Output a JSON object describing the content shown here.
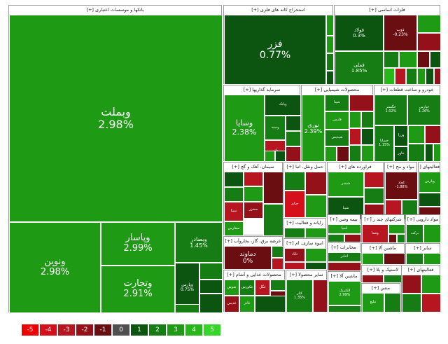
{
  "colors": {
    "-5": "#ee0000",
    "-4": "#d5101a",
    "-3": "#b71520",
    "-2": "#95111a",
    "-1": "#6b0e12",
    "0": "#4f4f4f",
    "1": "#0b5510",
    "2": "#157d13",
    "3": "#1f9a15",
    "4": "#28b71b",
    "5": "#35d52a"
  },
  "groups": [
    {
      "id": "banks",
      "title": "بانکها و موسسات اعتباری [+]",
      "tiles": [
        {
          "name": "وبملت",
          "value": "2.98%",
          "c": "3"
        },
        {
          "name": "ونوین",
          "value": "2.98%",
          "c": "3"
        },
        {
          "name": "وپاسار",
          "value": "2.99%",
          "c": "3"
        },
        {
          "name": "وتجارت",
          "value": "2.91%",
          "c": "3"
        },
        {
          "name": "وبصادر",
          "value": "1.45%",
          "c": "2"
        },
        {
          "name": "وپارس",
          "value": "0.75%",
          "c": "1"
        },
        {
          "name": "",
          "value": "",
          "c": "2"
        },
        {
          "name": "",
          "value": "",
          "c": "1"
        },
        {
          "name": "",
          "value": "",
          "c": "1"
        },
        {
          "name": "",
          "value": "",
          "c": "2"
        }
      ]
    },
    {
      "id": "mining",
      "title": "استخراج کانه های فلزی [+]",
      "tiles": [
        {
          "name": "فزر",
          "value": "0.77%",
          "c": "1"
        },
        {
          "name": "",
          "value": "",
          "c": "3"
        },
        {
          "name": "",
          "value": "",
          "c": "3"
        },
        {
          "name": "",
          "value": "",
          "c": "2"
        },
        {
          "name": "",
          "value": "",
          "c": "1"
        }
      ]
    },
    {
      "id": "metals",
      "title": "فلزات اساسی [+]",
      "tiles": [
        {
          "name": "فولاد",
          "value": "0.3%",
          "c": "1"
        },
        {
          "name": "ذوب",
          "value": "-0.23%",
          "c": "-1"
        },
        {
          "name": "فملی",
          "value": "1.85%",
          "c": "2"
        },
        {
          "name": "",
          "value": "",
          "c": "3"
        },
        {
          "name": "",
          "value": "",
          "c": "-2"
        },
        {
          "name": "",
          "value": "",
          "c": "2"
        },
        {
          "name": "",
          "value": "",
          "c": "3"
        },
        {
          "name": "",
          "value": "",
          "c": "-1"
        },
        {
          "name": "",
          "value": "",
          "c": "1"
        },
        {
          "name": "",
          "value": "",
          "c": "4"
        },
        {
          "name": "",
          "value": "",
          "c": "-3"
        },
        {
          "name": "",
          "value": "",
          "c": "2"
        },
        {
          "name": "",
          "value": "",
          "c": "3"
        },
        {
          "name": "",
          "value": "",
          "c": "1"
        },
        {
          "name": "",
          "value": "",
          "c": "-2"
        }
      ]
    },
    {
      "id": "investment",
      "title": "سرمایه گذاریها [+]",
      "tiles": [
        {
          "name": "وسایا",
          "value": "2.38%",
          "c": "3"
        },
        {
          "name": "وبانک",
          "value": "",
          "c": "1"
        },
        {
          "name": "وسپه",
          "value": "",
          "c": "2"
        },
        {
          "name": "واتی",
          "value": "",
          "c": "-3"
        },
        {
          "name": "",
          "value": "",
          "c": "1"
        },
        {
          "name": "",
          "value": "",
          "c": "2"
        },
        {
          "name": "",
          "value": "",
          "c": "-2"
        },
        {
          "name": "",
          "value": "",
          "c": "3"
        },
        {
          "name": "",
          "value": "",
          "c": "1"
        }
      ]
    },
    {
      "id": "chemical",
      "title": "محصولات شیمیایی [+]",
      "tiles": [
        {
          "name": "نوری",
          "value": "2.39%",
          "c": "3"
        },
        {
          "name": "شپنا",
          "value": "",
          "c": "2"
        },
        {
          "name": "فارس",
          "value": "",
          "c": "3"
        },
        {
          "name": "شپدیس",
          "value": "",
          "c": "2"
        },
        {
          "name": "",
          "value": "",
          "c": "-2"
        },
        {
          "name": "",
          "value": "",
          "c": "3"
        },
        {
          "name": "",
          "value": "",
          "c": "2"
        },
        {
          "name": "",
          "value": "",
          "c": "-3"
        },
        {
          "name": "",
          "value": "",
          "c": "1"
        },
        {
          "name": "",
          "value": "",
          "c": "3"
        },
        {
          "name": "",
          "value": "",
          "c": "-1"
        },
        {
          "name": "",
          "value": "",
          "c": "2"
        },
        {
          "name": "",
          "value": "",
          "c": "3"
        },
        {
          "name": "",
          "value": "",
          "c": "-2"
        },
        {
          "name": "",
          "value": "",
          "c": "1"
        }
      ]
    },
    {
      "id": "auto",
      "title": "خودرو و ساخت قطعات [+]",
      "tiles": [
        {
          "name": "خگستر",
          "value": "1.02%",
          "c": "2"
        },
        {
          "name": "خپارس",
          "value": "1.26%",
          "c": "2"
        },
        {
          "name": "خساپا",
          "value": "1.15%",
          "c": "2"
        },
        {
          "name": "وزرا",
          "value": "",
          "c": "1"
        },
        {
          "name": "خاور",
          "value": "",
          "c": "1"
        },
        {
          "name": "",
          "value": "",
          "c": "3"
        },
        {
          "name": "",
          "value": "",
          "c": "-2"
        },
        {
          "name": "",
          "value": "",
          "c": "2"
        },
        {
          "name": "",
          "value": "",
          "c": "1"
        },
        {
          "name": "",
          "value": "",
          "c": "3"
        }
      ]
    },
    {
      "id": "cement",
      "title": "سیمان، آهک و گچ [+]",
      "tiles": [
        {
          "name": "سیتا",
          "value": "",
          "c": "-3"
        },
        {
          "name": "سفارس",
          "value": "",
          "c": "3"
        },
        {
          "name": "سخزر",
          "value": "",
          "c": "-2"
        },
        {
          "name": "",
          "value": "",
          "c": "1"
        },
        {
          "name": "",
          "value": "",
          "c": "2"
        },
        {
          "name": "",
          "value": "",
          "c": "-3"
        },
        {
          "name": "",
          "value": "",
          "c": "3"
        },
        {
          "name": "",
          "value": "",
          "c": "-1"
        },
        {
          "name": "",
          "value": "",
          "c": "2"
        }
      ]
    },
    {
      "id": "transport",
      "title": "حمل ونقل، انبا [+]",
      "tiles": [
        {
          "name": "حتاید",
          "value": "",
          "c": "-4"
        },
        {
          "name": "",
          "value": "",
          "c": "2"
        },
        {
          "name": "",
          "value": "",
          "c": "-2"
        },
        {
          "name": "",
          "value": "",
          "c": "3"
        },
        {
          "name": "",
          "value": "",
          "c": "-1"
        }
      ]
    },
    {
      "id": "petroleum",
      "title": "فراورده های [+]",
      "tiles": [
        {
          "name": "شبندر",
          "value": "",
          "c": "3"
        },
        {
          "name": "شپنا",
          "value": "",
          "c": "1"
        },
        {
          "name": "",
          "value": "",
          "c": "-3"
        },
        {
          "name": "",
          "value": "",
          "c": "2"
        },
        {
          "name": "",
          "value": "",
          "c": "-2"
        },
        {
          "name": "",
          "value": "",
          "c": "3"
        }
      ]
    },
    {
      "id": "nonmetal",
      "title": "مواد و مح [+]",
      "tiles": [
        {
          "name": "کچاد",
          "value": "-1.88%",
          "c": "-1"
        },
        {
          "name": "",
          "value": "",
          "c": "-3"
        },
        {
          "name": "",
          "value": "",
          "c": "2"
        }
      ]
    },
    {
      "id": "multi",
      "title": "فعالیتهای [+]",
      "tiles": [
        {
          "name": "وپارس",
          "value": "",
          "c": "3"
        },
        {
          "name": "",
          "value": "",
          "c": "1"
        },
        {
          "name": "",
          "value": "",
          "c": "-1"
        }
      ]
    },
    {
      "id": "software",
      "title": "رایانه و فعالیت [+]",
      "tiles": [
        {
          "name": "",
          "value": "",
          "c": "2"
        },
        {
          "name": "",
          "value": "",
          "c": "3"
        }
      ]
    },
    {
      "id": "insurance",
      "title": "بیمه وصن [+]",
      "tiles": [
        {
          "name": "اسیا",
          "value": "",
          "c": "3"
        },
        {
          "name": "",
          "value": "",
          "c": "2"
        },
        {
          "name": "",
          "value": "",
          "c": "-2"
        }
      ]
    },
    {
      "id": "multi2",
      "title": "شرکتهای چند ر [+]",
      "tiles": [
        {
          "name": "وصنا",
          "value": "",
          "c": "-3"
        },
        {
          "name": "",
          "value": "",
          "c": "3"
        },
        {
          "name": "",
          "value": "",
          "c": "-1"
        },
        {
          "name": "",
          "value": "",
          "c": "2"
        }
      ]
    },
    {
      "id": "pharma",
      "title": "مواد دارویی [+]",
      "tiles": [
        {
          "name": "برکت",
          "value": "",
          "c": "2"
        },
        {
          "name": "",
          "value": "",
          "c": "3"
        }
      ]
    },
    {
      "id": "utility",
      "title": "عرضه برق، گاز، بخاروآب [+]",
      "tiles": [
        {
          "name": "دماوند",
          "value": "0%",
          "c": "-1"
        },
        {
          "name": "",
          "value": "",
          "c": "2"
        },
        {
          "name": "",
          "value": "",
          "c": "-3"
        }
      ]
    },
    {
      "id": "tile",
      "title": "انبوه سازی، ام [+]",
      "tiles": [
        {
          "name": "ثاباد",
          "value": "",
          "c": "-2"
        },
        {
          "name": "",
          "value": "",
          "c": "3"
        },
        {
          "name": "",
          "value": "",
          "c": "-3"
        },
        {
          "name": "",
          "value": "",
          "c": "1"
        }
      ]
    },
    {
      "id": "telecom",
      "title": "مخابرات [+]",
      "tiles": [
        {
          "name": "اخابر",
          "value": "",
          "c": "2"
        },
        {
          "name": "",
          "value": "",
          "c": "-2"
        }
      ]
    },
    {
      "id": "electric",
      "title": "ماشین آلا [+]",
      "tiles": [
        {
          "name": "",
          "value": "",
          "c": "3"
        },
        {
          "name": "",
          "value": "",
          "c": "-1"
        }
      ]
    },
    {
      "id": "other",
      "title": "سایر [+]",
      "tiles": [
        {
          "name": "",
          "value": "",
          "c": "2"
        },
        {
          "name": "",
          "value": "",
          "c": "3"
        }
      ]
    },
    {
      "id": "rubber",
      "title": "لاستیک و پلا [+]",
      "tiles": [
        {
          "name": "",
          "value": "",
          "c": "-2"
        },
        {
          "name": "",
          "value": "",
          "c": "2"
        }
      ]
    },
    {
      "id": "food",
      "title": "محصولات غذایی و آشام [+]",
      "tiles": [
        {
          "name": "شوش",
          "value": "",
          "c": "3"
        },
        {
          "name": "غکورش",
          "value": "",
          "c": "2"
        },
        {
          "name": "غگل",
          "value": "",
          "c": "-3"
        },
        {
          "name": "غدیس",
          "value": "",
          "c": "-2"
        },
        {
          "name": "غاذر",
          "value": "",
          "c": "3"
        },
        {
          "name": "",
          "value": "",
          "c": "2"
        },
        {
          "name": "",
          "value": "",
          "c": "-1"
        },
        {
          "name": "",
          "value": "",
          "c": "1"
        }
      ]
    },
    {
      "id": "computer",
      "title": "سایر محصولا [+]",
      "tiles": [
        {
          "name": "کپار",
          "value": "1.35%",
          "c": "2"
        },
        {
          "name": "",
          "value": "",
          "c": "-2"
        }
      ]
    },
    {
      "id": "textile",
      "title": "ماشین آلا [+]",
      "tiles": [
        {
          "name": "الکتریک",
          "value": "2.99%",
          "c": "3"
        },
        {
          "name": "",
          "value": "",
          "c": "2"
        }
      ]
    },
    {
      "id": "commerce",
      "title": "منس [+]",
      "tiles": [
        {
          "name": "تبلیغ",
          "value": "",
          "c": "3"
        },
        {
          "name": "",
          "value": "",
          "c": "2"
        }
      ]
    },
    {
      "id": "bottom",
      "title": "فعالیتهای [+]",
      "tiles": [
        {
          "name": "",
          "value": "",
          "c": "-2"
        },
        {
          "name": "",
          "value": "",
          "c": "3"
        },
        {
          "name": "",
          "value": "",
          "c": "2"
        },
        {
          "name": "",
          "value": "",
          "c": "-3"
        }
      ]
    }
  ],
  "legend": [
    "-5",
    "-4",
    "-3",
    "-2",
    "-1",
    "0",
    "1",
    "2",
    "3",
    "4",
    "5"
  ]
}
